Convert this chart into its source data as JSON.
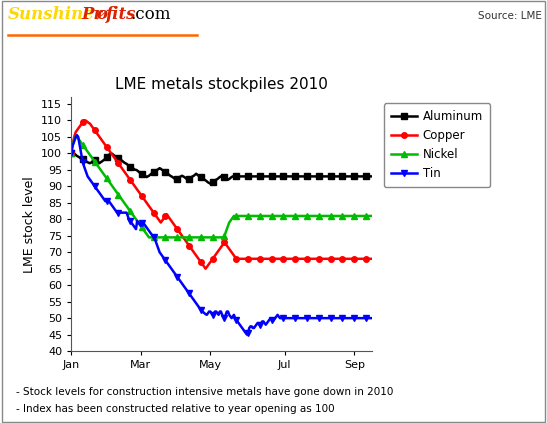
{
  "title": "LME metals stockpiles 2010",
  "ylabel": "LME stock level",
  "source_text": "Source: LME",
  "ylim": [
    40,
    117
  ],
  "yticks": [
    40,
    45,
    50,
    55,
    60,
    65,
    70,
    75,
    80,
    85,
    90,
    95,
    100,
    105,
    110,
    115
  ],
  "xtick_labels": [
    "Jan",
    "Mar",
    "May",
    "Jul",
    "Sep"
  ],
  "footnote1": "- Stock levels for construction intensive metals have gone down in 2010",
  "footnote2": "- Index has been constructed relative to year opening as 100",
  "series": [
    {
      "name": "Aluminum",
      "color": "#000000",
      "marker": "s"
    },
    {
      "name": "Copper",
      "color": "#ff0000",
      "marker": "o"
    },
    {
      "name": "Nickel",
      "color": "#00bb00",
      "marker": "^"
    },
    {
      "name": "Tin",
      "color": "#0000ff",
      "marker": "v"
    }
  ],
  "aluminum": [
    100.0,
    100.1,
    100.0,
    99.8,
    99.5,
    99.2,
    99.0,
    98.8,
    98.5,
    98.3,
    98.2,
    98.0,
    97.8,
    97.5,
    97.3,
    97.1,
    97.0,
    97.2,
    97.5,
    97.8,
    98.0,
    97.8,
    97.5,
    97.2,
    97.0,
    97.3,
    97.5,
    97.8,
    98.0,
    98.5,
    99.0,
    99.2,
    99.5,
    99.8,
    100.0,
    99.8,
    99.5,
    99.2,
    99.0,
    98.8,
    98.5,
    98.2,
    98.0,
    97.8,
    97.5,
    97.2,
    97.0,
    96.8,
    96.5,
    96.2,
    96.0,
    95.8,
    95.5,
    95.3,
    95.0,
    95.0,
    94.8,
    94.5,
    94.2,
    94.0,
    93.8,
    93.5,
    93.3,
    93.0,
    92.8,
    93.0,
    93.2,
    93.5,
    93.8,
    94.0,
    94.2,
    94.5,
    94.8,
    95.0,
    95.2,
    95.5,
    95.3,
    95.0,
    94.8,
    94.5,
    94.2,
    94.0,
    93.8,
    93.5,
    93.2,
    93.0,
    92.8,
    92.5,
    92.3,
    92.0,
    92.2,
    92.5,
    92.8,
    93.0,
    93.2,
    93.0,
    92.8,
    92.5,
    92.2,
    92.0,
    92.2,
    92.5,
    92.8,
    93.0,
    93.2,
    93.5,
    93.8,
    93.5,
    93.2,
    93.0,
    92.8,
    92.5,
    92.2,
    92.0,
    91.8,
    91.5,
    91.2,
    91.0,
    90.8,
    91.0,
    91.2,
    91.5,
    91.8,
    92.0,
    92.2,
    92.5,
    92.8,
    93.0,
    93.2,
    93.0,
    92.8,
    92.5,
    92.2,
    92.0,
    92.2,
    92.5,
    92.8,
    93.0,
    93.0,
    93.0,
    93.0,
    93.0,
    93.0,
    93.0,
    93.0,
    93.0,
    93.0,
    93.0,
    93.0,
    93.0,
    93.0,
    93.0,
    93.0,
    93.0,
    93.0,
    93.0,
    93.0,
    93.0,
    93.0,
    93.0,
    93.0,
    93.0,
    93.0,
    93.0,
    93.0,
    93.0,
    93.0,
    93.0,
    93.0,
    93.0,
    93.0,
    93.0,
    93.0,
    93.0,
    93.0,
    93.0,
    93.0,
    93.0,
    93.0,
    93.0,
    93.0,
    93.0,
    93.0,
    93.0,
    93.0,
    93.0,
    93.0,
    93.0,
    93.0,
    93.0,
    93.0,
    93.0,
    93.0,
    93.0,
    93.0,
    93.0,
    93.0,
    93.0,
    93.0,
    93.0,
    93.0,
    93.0,
    93.0,
    93.0,
    93.0,
    93.0,
    93.0,
    93.0,
    93.0,
    93.0,
    93.0,
    93.0,
    93.0,
    93.0,
    93.0,
    93.0,
    93.0,
    93.0,
    93.0,
    93.0,
    93.0,
    93.0,
    93.0,
    93.0,
    93.0,
    93.0,
    93.0,
    93.0,
    93.0,
    93.0,
    93.0,
    93.0,
    93.0,
    93.0,
    93.0,
    93.0,
    93.0,
    93.0,
    93.0,
    93.0,
    93.0,
    93.0,
    93.0,
    93.0,
    93.0,
    93.0,
    93.0,
    93.0,
    93.0,
    93.0,
    93.0,
    93.0,
    93.0,
    93.0,
    93.0,
    93.0
  ],
  "copper": [
    100.0,
    102.0,
    104.0,
    105.5,
    106.5,
    107.0,
    107.5,
    108.0,
    108.5,
    109.0,
    109.5,
    110.0,
    110.0,
    109.8,
    109.5,
    109.2,
    109.0,
    108.5,
    108.0,
    107.5,
    107.0,
    106.5,
    106.0,
    105.5,
    105.0,
    104.5,
    104.0,
    103.5,
    103.0,
    102.5,
    102.0,
    101.5,
    101.0,
    100.5,
    100.0,
    99.5,
    99.0,
    98.5,
    98.0,
    97.5,
    97.0,
    96.5,
    96.0,
    95.5,
    95.0,
    94.5,
    94.0,
    93.5,
    93.0,
    92.5,
    92.0,
    91.5,
    91.0,
    90.5,
    90.0,
    89.5,
    89.0,
    88.5,
    88.0,
    87.5,
    87.0,
    86.5,
    86.0,
    85.5,
    85.0,
    84.5,
    84.0,
    83.5,
    83.0,
    82.5,
    82.0,
    81.5,
    81.0,
    80.5,
    80.0,
    79.5,
    79.0,
    79.5,
    80.0,
    80.5,
    81.0,
    81.5,
    81.0,
    80.5,
    80.0,
    79.5,
    79.0,
    78.5,
    78.0,
    77.5,
    77.0,
    76.5,
    76.0,
    75.5,
    75.0,
    74.5,
    74.0,
    73.5,
    73.0,
    72.5,
    72.0,
    71.5,
    71.0,
    70.5,
    70.0,
    69.5,
    69.0,
    68.5,
    68.0,
    67.5,
    67.0,
    66.5,
    66.0,
    65.5,
    65.0,
    65.5,
    66.0,
    66.5,
    67.0,
    67.5,
    68.0,
    68.5,
    69.0,
    69.5,
    70.0,
    70.5,
    71.0,
    71.5,
    72.0,
    72.5,
    73.0,
    72.5,
    72.0,
    71.5,
    71.0,
    70.5,
    70.0,
    69.5,
    69.0,
    68.5,
    68.0,
    68.0,
    68.0,
    68.0,
    68.0,
    68.0,
    68.0,
    68.0,
    68.0,
    68.0,
    68.0,
    68.0,
    68.0,
    68.0,
    68.0,
    68.0,
    68.0,
    68.0,
    68.0,
    68.0,
    68.0,
    68.0,
    68.0,
    68.0,
    68.0,
    68.0,
    68.0,
    68.0,
    68.0,
    68.0,
    68.0,
    68.0,
    68.0,
    68.0,
    68.0,
    68.0,
    68.0,
    68.0,
    68.0,
    68.0,
    68.0,
    68.0,
    68.0,
    68.0,
    68.0,
    68.0,
    68.0,
    68.0,
    68.0,
    68.0,
    68.0,
    68.0,
    68.0,
    68.0,
    68.0,
    68.0,
    68.0,
    68.0,
    68.0,
    68.0,
    68.0,
    68.0,
    68.0,
    68.0,
    68.0,
    68.0,
    68.0,
    68.0,
    68.0,
    68.0,
    68.0,
    68.0,
    68.0,
    68.0,
    68.0,
    68.0,
    68.0,
    68.0,
    68.0,
    68.0,
    68.0,
    68.0,
    68.0,
    68.0,
    68.0,
    68.0,
    68.0,
    68.0,
    68.0,
    68.0,
    68.0,
    68.0,
    68.0,
    68.0,
    68.0,
    68.0,
    68.0,
    68.0,
    68.0,
    68.0,
    68.0,
    68.0,
    68.0,
    68.0,
    68.0,
    68.0,
    68.0,
    68.0,
    68.0,
    68.0,
    68.0,
    68.0,
    68.0,
    68.0,
    68.0,
    68.0
  ],
  "nickel": [
    100.0,
    102.0,
    103.5,
    104.5,
    105.0,
    105.0,
    104.5,
    104.0,
    103.5,
    103.0,
    102.5,
    102.0,
    101.5,
    101.0,
    100.5,
    100.0,
    99.5,
    99.0,
    98.5,
    98.0,
    97.5,
    97.0,
    96.5,
    96.0,
    95.5,
    95.0,
    94.5,
    94.0,
    93.5,
    93.0,
    92.5,
    92.0,
    91.5,
    91.0,
    90.5,
    90.0,
    89.5,
    89.0,
    88.5,
    88.0,
    87.5,
    87.0,
    86.5,
    86.0,
    85.5,
    85.0,
    84.5,
    84.0,
    83.5,
    83.0,
    82.5,
    82.0,
    81.5,
    81.0,
    80.5,
    80.0,
    79.5,
    79.0,
    78.5,
    78.0,
    77.5,
    77.0,
    76.5,
    76.0,
    75.5,
    75.0,
    74.5,
    74.5,
    74.5,
    74.5,
    74.5,
    74.5,
    74.5,
    74.5,
    74.5,
    74.5,
    74.5,
    74.5,
    74.5,
    74.5,
    74.5,
    74.5,
    74.5,
    74.5,
    74.5,
    74.5,
    74.5,
    74.5,
    74.5,
    74.5,
    74.5,
    74.5,
    74.5,
    74.5,
    74.5,
    74.5,
    74.5,
    74.5,
    74.5,
    74.5,
    74.5,
    74.5,
    74.5,
    74.5,
    74.5,
    74.5,
    74.5,
    74.5,
    74.5,
    74.5,
    74.5,
    74.5,
    74.5,
    74.5,
    74.5,
    74.5,
    74.5,
    74.5,
    74.5,
    74.5,
    74.5,
    74.5,
    74.5,
    74.5,
    74.5,
    74.5,
    74.5,
    74.5,
    74.5,
    74.5,
    75.0,
    76.0,
    77.0,
    78.0,
    79.0,
    79.5,
    80.0,
    80.5,
    81.0,
    81.0,
    81.0,
    81.0,
    81.0,
    81.0,
    81.0,
    81.0,
    81.0,
    81.0,
    81.0,
    81.0,
    81.0,
    81.0,
    81.0,
    81.0,
    81.0,
    81.0,
    81.0,
    81.0,
    81.0,
    81.0,
    81.0,
    81.0,
    81.0,
    81.0,
    81.0,
    81.0,
    81.0,
    81.0,
    81.0,
    81.0,
    81.0,
    81.0,
    81.0,
    81.0,
    81.0,
    81.0,
    81.0,
    81.0,
    81.0,
    81.0,
    81.0,
    81.0,
    81.0,
    81.0,
    81.0,
    81.0,
    81.0,
    81.0,
    81.0,
    81.0,
    81.0,
    81.0,
    81.0,
    81.0,
    81.0,
    81.0,
    81.0,
    81.0,
    81.0,
    81.0,
    81.0,
    81.0,
    81.0,
    81.0,
    81.0,
    81.0,
    81.0,
    81.0,
    81.0,
    81.0,
    81.0,
    81.0,
    81.0,
    81.0,
    81.0,
    81.0,
    81.0,
    81.0,
    81.0,
    81.0,
    81.0,
    81.0,
    81.0,
    81.0,
    81.0,
    81.0,
    81.0,
    81.0,
    81.0,
    81.0,
    81.0,
    81.0,
    81.0,
    81.0,
    81.0,
    81.0,
    81.0,
    81.0,
    81.0,
    81.0,
    81.0,
    81.0,
    81.0,
    81.0,
    81.0,
    81.0,
    81.0,
    81.0,
    81.0,
    81.0,
    81.0,
    81.0,
    81.0,
    81.0,
    81.0,
    81.0
  ],
  "tin": [
    100.0,
    102.0,
    103.0,
    104.0,
    105.0,
    105.5,
    105.0,
    103.0,
    101.0,
    99.0,
    97.5,
    96.0,
    95.0,
    94.0,
    93.0,
    92.5,
    92.0,
    91.5,
    91.0,
    90.5,
    90.0,
    89.5,
    89.0,
    88.5,
    88.0,
    87.5,
    87.0,
    86.5,
    86.0,
    85.5,
    85.5,
    85.5,
    85.5,
    85.0,
    84.5,
    84.0,
    83.5,
    83.0,
    82.5,
    82.0,
    82.0,
    82.0,
    82.0,
    82.0,
    82.0,
    82.0,
    82.0,
    82.0,
    81.0,
    80.0,
    79.5,
    79.0,
    78.5,
    78.0,
    77.5,
    77.0,
    79.5,
    79.0,
    78.5,
    78.0,
    79.0,
    79.0,
    78.5,
    78.0,
    77.5,
    77.0,
    76.5,
    76.0,
    75.5,
    75.0,
    74.5,
    74.0,
    73.0,
    72.0,
    71.0,
    70.0,
    69.5,
    69.0,
    68.5,
    68.0,
    67.5,
    67.0,
    66.5,
    66.0,
    65.5,
    65.0,
    64.5,
    64.0,
    63.5,
    63.0,
    62.5,
    62.0,
    61.5,
    61.0,
    60.5,
    60.0,
    59.5,
    59.0,
    58.5,
    58.0,
    57.5,
    57.0,
    56.5,
    56.0,
    55.5,
    55.0,
    54.5,
    54.0,
    53.5,
    53.0,
    52.5,
    52.0,
    51.8,
    51.5,
    51.2,
    51.0,
    51.5,
    52.0,
    52.0,
    51.5,
    51.0,
    51.5,
    52.0,
    52.0,
    51.5,
    51.0,
    52.0,
    52.0,
    51.0,
    50.5,
    50.0,
    51.0,
    52.0,
    52.0,
    51.0,
    50.5,
    50.0,
    50.5,
    51.0,
    50.0,
    49.5,
    49.0,
    48.5,
    48.0,
    47.5,
    47.0,
    46.5,
    46.0,
    45.5,
    45.0,
    45.5,
    47.0,
    47.5,
    47.5,
    47.0,
    47.0,
    47.5,
    48.0,
    48.5,
    48.5,
    48.0,
    48.5,
    49.0,
    49.0,
    48.5,
    48.0,
    48.5,
    49.0,
    49.5,
    50.0,
    49.5,
    49.0,
    49.5,
    50.0,
    50.5,
    51.0,
    50.5,
    50.0,
    50.0,
    50.0,
    50.0,
    50.0,
    50.0,
    50.0,
    50.0,
    50.0,
    50.0,
    50.0,
    50.0,
    50.0,
    50.0,
    50.0,
    50.0,
    50.0,
    50.0,
    50.0,
    50.0,
    50.0,
    50.0,
    50.0,
    50.0,
    50.0,
    50.0,
    50.0,
    50.0,
    50.0,
    50.0,
    50.0,
    50.0,
    50.0,
    50.0,
    50.0,
    50.0,
    50.0,
    50.0,
    50.0,
    50.0,
    50.0,
    50.0,
    50.0,
    50.0,
    50.0,
    50.0,
    50.0,
    50.0,
    50.0,
    50.0,
    50.0,
    50.0,
    50.0,
    50.0,
    50.0,
    50.0,
    50.0,
    50.0,
    50.0,
    50.0,
    50.0,
    50.0,
    50.0,
    50.0,
    50.0,
    50.0,
    50.0,
    50.0,
    50.0,
    50.0,
    50.0,
    50.0,
    50.0,
    50.0,
    50.0,
    50.0,
    50.0,
    50.0,
    50.0
  ]
}
